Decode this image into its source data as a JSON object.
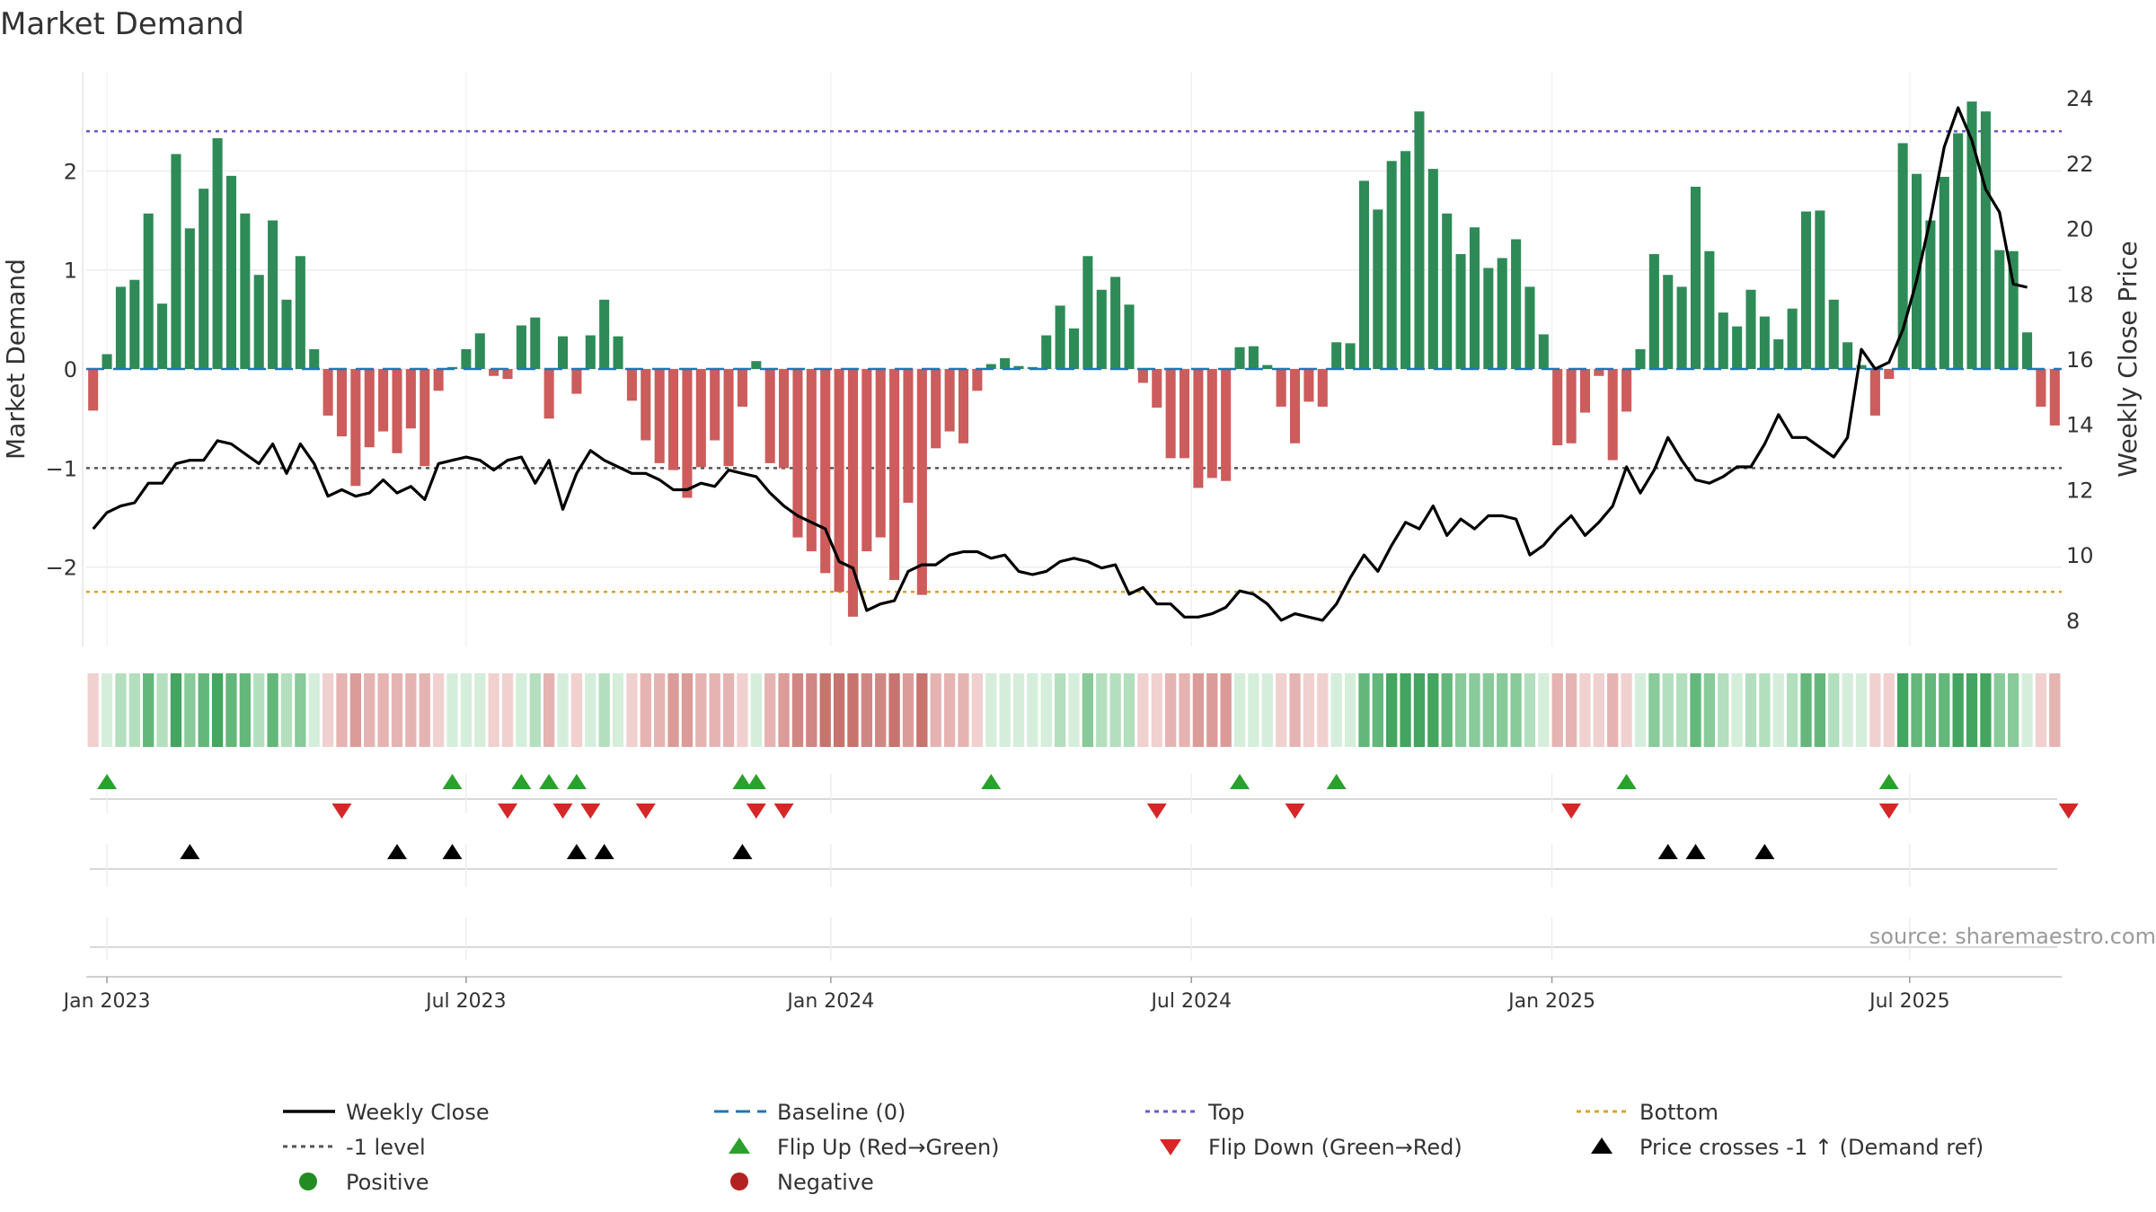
{
  "chart_data": {
    "type": "bar+line",
    "title": "Market Demand",
    "ylabel_left": "Market Demand",
    "ylabel_right": "Weekly Close Price",
    "ylim_left": [
      -2.8,
      3.0
    ],
    "ylim_right": [
      7.2,
      24.8
    ],
    "yticks_left": [
      {
        "v": 2,
        "label": "2"
      },
      {
        "v": 1,
        "label": "1"
      },
      {
        "v": 0,
        "label": "0"
      },
      {
        "v": -1,
        "label": "−1"
      },
      {
        "v": -2,
        "label": "−2"
      }
    ],
    "yticks_right": [
      8,
      10,
      12,
      14,
      16,
      18,
      20,
      22,
      24
    ],
    "x_ticks": [
      {
        "week": 1,
        "label": "Jan 2023"
      },
      {
        "week": 27,
        "label": "Jul 2023"
      },
      {
        "week": 53.4,
        "label": "Jan 2024"
      },
      {
        "week": 79.5,
        "label": "Jul 2024"
      },
      {
        "week": 105.6,
        "label": "Jan 2025"
      },
      {
        "week": 131.5,
        "label": "Jul 2025"
      }
    ],
    "reference_lines": {
      "top": 2.4,
      "bottom": -2.25,
      "minus_one": -1,
      "baseline": 0
    },
    "demand": [
      -0.42,
      0.15,
      0.83,
      0.9,
      1.57,
      0.66,
      2.17,
      1.42,
      1.82,
      2.33,
      1.95,
      1.57,
      0.95,
      1.5,
      0.7,
      1.14,
      0.2,
      -0.47,
      -0.68,
      -1.18,
      -0.79,
      -0.63,
      -0.85,
      -0.6,
      -0.98,
      -0.22,
      0.02,
      0.2,
      0.36,
      -0.07,
      -0.1,
      0.44,
      0.52,
      -0.5,
      0.33,
      -0.25,
      0.34,
      0.7,
      0.33,
      -0.32,
      -0.72,
      -0.95,
      -1.02,
      -1.3,
      -0.99,
      -0.72,
      -0.98,
      -0.38,
      0.08,
      -0.95,
      -1.0,
      -1.7,
      -1.84,
      -2.06,
      -2.25,
      -2.5,
      -1.84,
      -1.7,
      -2.13,
      -1.35,
      -2.28,
      -0.8,
      -0.63,
      -0.75,
      -0.22,
      0.05,
      0.11,
      0.03,
      0.02,
      0.34,
      0.64,
      0.41,
      1.14,
      0.8,
      0.93,
      0.65,
      -0.14,
      -0.39,
      -0.9,
      -0.9,
      -1.2,
      -1.1,
      -1.13,
      0.22,
      0.23,
      0.04,
      -0.38,
      -0.75,
      -0.33,
      -0.38,
      0.27,
      0.26,
      1.9,
      1.61,
      2.1,
      2.2,
      2.6,
      2.02,
      1.57,
      1.16,
      1.43,
      1.02,
      1.12,
      1.31,
      0.83,
      0.35,
      -0.77,
      -0.75,
      -0.44,
      -0.07,
      -0.92,
      -0.43,
      0.2,
      1.16,
      0.95,
      0.83,
      1.84,
      1.19,
      0.57,
      0.43,
      0.8,
      0.53,
      0.3,
      0.61,
      1.59,
      1.6,
      0.7,
      0.27,
      0.04,
      -0.47,
      -0.1,
      2.28,
      1.97,
      1.5,
      1.94,
      2.38,
      2.7,
      2.6,
      1.2,
      1.19,
      0.37,
      -0.38,
      -0.57
    ],
    "weekly_close": [
      10.8,
      11.3,
      11.5,
      11.6,
      12.2,
      12.2,
      12.8,
      12.9,
      12.9,
      13.5,
      13.4,
      13.1,
      12.8,
      13.4,
      12.5,
      13.4,
      12.8,
      11.8,
      12.0,
      11.8,
      11.9,
      12.3,
      11.9,
      12.1,
      11.7,
      12.8,
      12.9,
      13.0,
      12.9,
      12.6,
      12.9,
      13.0,
      12.2,
      12.9,
      11.4,
      12.5,
      13.2,
      12.9,
      12.7,
      12.5,
      12.5,
      12.3,
      12.0,
      12.0,
      12.2,
      12.1,
      12.6,
      12.5,
      12.4,
      11.9,
      11.5,
      11.2,
      11.0,
      10.8,
      9.8,
      9.6,
      8.3,
      8.5,
      8.6,
      9.5,
      9.7,
      9.7,
      10.0,
      10.1,
      10.1,
      9.9,
      10.0,
      9.5,
      9.4,
      9.5,
      9.8,
      9.9,
      9.8,
      9.6,
      9.7,
      8.8,
      9.0,
      8.5,
      8.5,
      8.1,
      8.1,
      8.2,
      8.4,
      8.9,
      8.8,
      8.5,
      8.0,
      8.2,
      8.1,
      8.0,
      8.5,
      9.3,
      10.0,
      9.5,
      10.3,
      11.0,
      10.8,
      11.5,
      10.6,
      11.1,
      10.8,
      11.2,
      11.2,
      11.1,
      10.0,
      10.3,
      10.8,
      11.2,
      10.6,
      11.0,
      11.5,
      12.7,
      11.9,
      12.6,
      13.6,
      12.9,
      12.3,
      12.2,
      12.4,
      12.7,
      12.7,
      13.4,
      14.3,
      13.6,
      13.6,
      13.3,
      13.0,
      13.6,
      16.3,
      15.7,
      15.9,
      16.9,
      18.4,
      20.3,
      22.5,
      23.7,
      22.7,
      21.2,
      20.5,
      18.3,
      18.2
    ],
    "strip_colors": {
      "positive_scale": [
        "#d5eedb",
        "#b3dfbf",
        "#88ca99",
        "#63b77a",
        "#43a55f"
      ],
      "negative_scale": [
        "#f0d1d0",
        "#e5b4b2",
        "#db9c99",
        "#d08783",
        "#c7736e"
      ]
    },
    "flip_up_weeks": [
      1,
      26,
      31,
      33,
      35,
      47,
      48,
      65,
      83,
      90,
      111,
      130
    ],
    "flip_down_weeks": [
      18,
      30,
      34,
      36,
      40,
      48,
      50,
      77,
      87,
      107,
      130,
      143
    ],
    "price_cross_weeks": [
      7,
      22,
      26,
      35,
      37,
      47,
      114,
      116,
      121
    ],
    "source_text": "source: sharemaestro.com",
    "colors": {
      "positive_bar": "#2e8b57",
      "negative_bar": "#cd5c5c",
      "close_line": "#000000",
      "baseline": "#1f77b4",
      "top_line": "#6a5acd",
      "bottom_line": "#daa520",
      "minus_one_line": "#555555",
      "flip_up": "#2ca02c",
      "flip_down": "#d62728",
      "price_cross": "#000000",
      "positive_dot": "#228b22",
      "negative_dot": "#b22222"
    },
    "legend": [
      {
        "label": "Weekly Close",
        "symbol": "solid-line",
        "color": "#000000"
      },
      {
        "label": "Baseline (0)",
        "symbol": "dashed-line",
        "color": "#1f77b4"
      },
      {
        "label": "Top",
        "symbol": "dotted-line",
        "color": "#6a5acd"
      },
      {
        "label": "Bottom",
        "symbol": "dotted-line",
        "color": "#daa520"
      },
      {
        "label": "-1 level",
        "symbol": "dotted-line",
        "color": "#555555"
      },
      {
        "label": "Flip Up (Red→Green)",
        "symbol": "triangle-up",
        "color": "#2ca02c"
      },
      {
        "label": "Flip Down (Green→Red)",
        "symbol": "triangle-down",
        "color": "#d62728"
      },
      {
        "label": "Price crosses -1 ↑ (Demand ref)",
        "symbol": "triangle-up",
        "color": "#000000"
      },
      {
        "label": "Positive",
        "symbol": "dot",
        "color": "#228b22"
      },
      {
        "label": "Negative",
        "symbol": "dot",
        "color": "#b22222"
      }
    ]
  }
}
